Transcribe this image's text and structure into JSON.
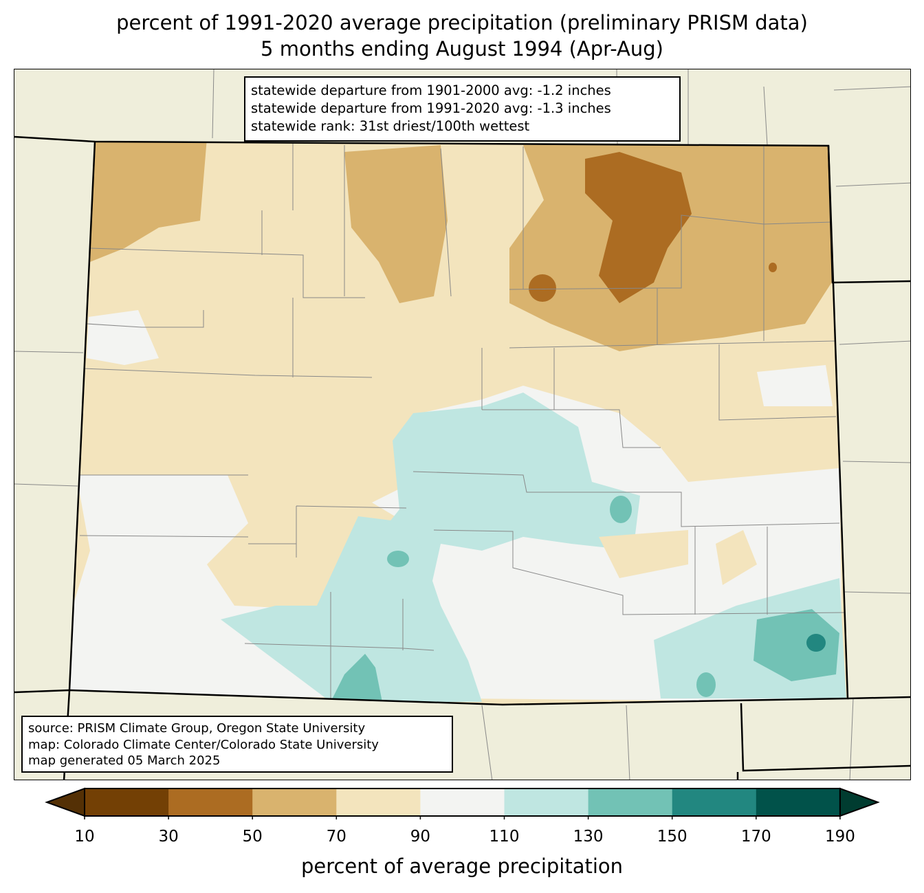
{
  "title": {
    "line1": "percent of 1991-2020 average precipitation (preliminary PRISM data)",
    "line2": "5 months ending August 1994 (Apr-Aug)"
  },
  "stats": {
    "line1": "statewide departure from 1901-2000 avg: -1.2 inches",
    "line2": "statewide departure from 1991-2020 avg: -1.3 inches",
    "line3": "statewide rank: 31st driest/100th wettest"
  },
  "source": {
    "line1": "source: PRISM Climate Group, Oregon State University",
    "line2": "map: Colorado Climate Center/Colorado State University",
    "line3": "map generated 05 March 2025"
  },
  "colorbar": {
    "label": "percent of average precipitation",
    "ticks": [
      "10",
      "30",
      "50",
      "70",
      "90",
      "110",
      "130",
      "150",
      "170",
      "190"
    ],
    "colors": [
      "#734005",
      "#ac6c22",
      "#d9b36e",
      "#f3e4bd",
      "#f3f4f2",
      "#bfe6e1",
      "#72c2b5",
      "#228780",
      "#01524a"
    ],
    "under_color": "#543005",
    "over_color": "#003c30"
  }
}
